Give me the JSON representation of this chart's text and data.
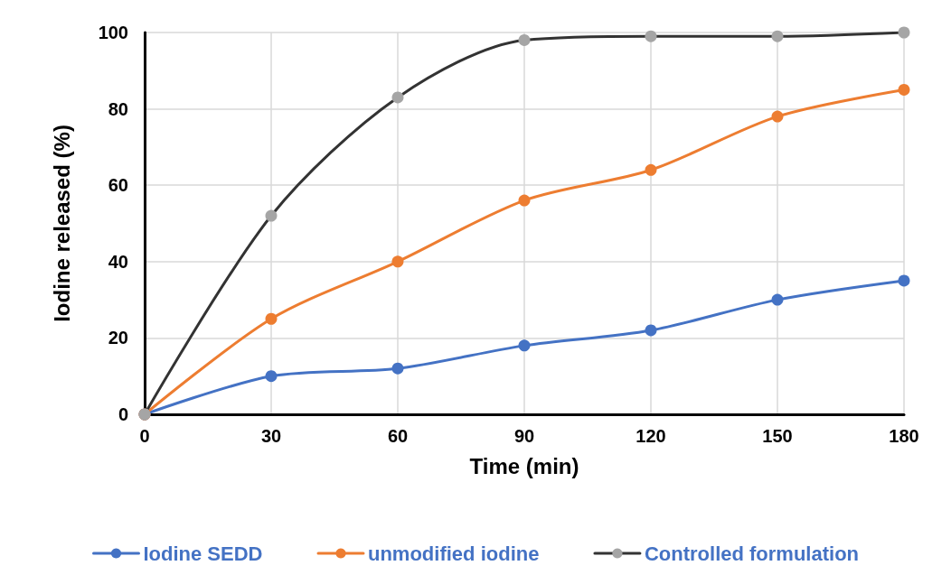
{
  "chart_data": {
    "type": "line",
    "xlabel": "Time (min)",
    "ylabel": "Iodine released (%)",
    "x": [
      0,
      30,
      60,
      90,
      120,
      150,
      180
    ],
    "series": [
      {
        "name": "Iodine SEDD",
        "color": "#4472c4",
        "values": [
          0,
          10,
          12,
          18,
          22,
          30,
          35
        ]
      },
      {
        "name": "unmodified iodine",
        "color": "#ed7d31",
        "values": [
          0,
          25,
          40,
          56,
          64,
          78,
          85
        ]
      },
      {
        "name": "Controlled formulation",
        "color": "#333333",
        "colors": [
          "#a5a5a5",
          "#a5a5a5",
          "#a5a5a5",
          "#a5a5a5",
          "#a5a5a5",
          "#a5a5a5",
          "#a5a5a5"
        ],
        "values": [
          0,
          52,
          83,
          98,
          99,
          99,
          100
        ]
      }
    ],
    "xlim": [
      0,
      180
    ],
    "xticks": [
      0,
      30,
      60,
      90,
      120,
      150,
      180
    ],
    "ylim": [
      0,
      100
    ],
    "yticks": [
      0,
      20,
      40,
      60,
      80,
      100
    ],
    "grid": true,
    "legend": "bottom",
    "marker": "circle",
    "line_style": "solid"
  }
}
